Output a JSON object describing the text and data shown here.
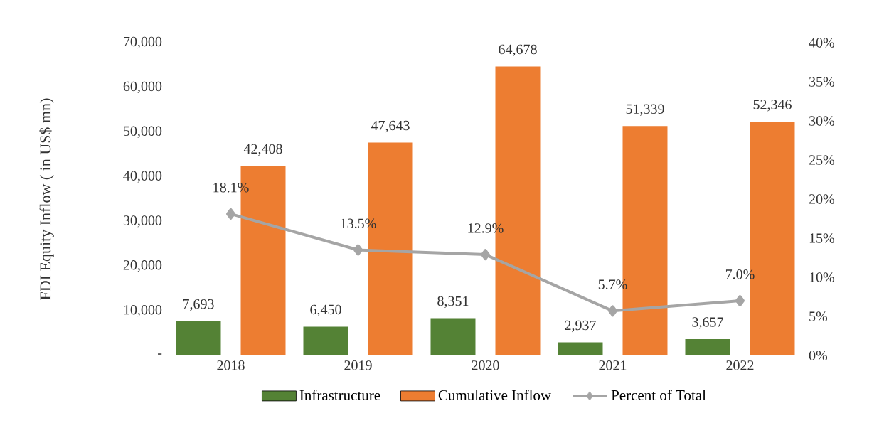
{
  "chart_data": {
    "type": "bar",
    "ylabel": "FDI Equity Inflow ( in US$ mn)",
    "categories": [
      "2018",
      "2019",
      "2020",
      "2021",
      "2022"
    ],
    "series": [
      {
        "name": "Infrastructure",
        "color": "#548235",
        "values": [
          7693,
          6450,
          8351,
          2937,
          3657
        ],
        "value_labels": [
          "7,693",
          "6,450",
          "8,351",
          "2,937",
          "3,657"
        ]
      },
      {
        "name": "Cumulative Inflow",
        "color": "#ed7d31",
        "values": [
          42408,
          47643,
          64678,
          51339,
          52346
        ],
        "value_labels": [
          "42,408",
          "47,643",
          "64,678",
          "51,339",
          "52,346"
        ]
      },
      {
        "name": "Percent of Total",
        "type": "line",
        "axis": "y2",
        "color": "#a5a5a5",
        "values": [
          18.1,
          13.5,
          12.9,
          5.7,
          7.0
        ],
        "value_labels": [
          "18.1%",
          "13.5%",
          "12.9%",
          "5.7%",
          "7.0%"
        ]
      }
    ],
    "ylim": [
      0,
      70000
    ],
    "yticks": [
      {
        "value": 0,
        "label": "-"
      },
      {
        "value": 10000,
        "label": "10,000"
      },
      {
        "value": 20000,
        "label": "20,000"
      },
      {
        "value": 30000,
        "label": "30,000"
      },
      {
        "value": 40000,
        "label": "40,000"
      },
      {
        "value": 50000,
        "label": "50,000"
      },
      {
        "value": 60000,
        "label": "60,000"
      },
      {
        "value": 70000,
        "label": "70,000"
      }
    ],
    "y2lim": [
      0,
      40
    ],
    "y2ticks": [
      {
        "value": 0,
        "label": "0%"
      },
      {
        "value": 5,
        "label": "5%"
      },
      {
        "value": 10,
        "label": "10%"
      },
      {
        "value": 15,
        "label": "15%"
      },
      {
        "value": 20,
        "label": "20%"
      },
      {
        "value": 25,
        "label": "25%"
      },
      {
        "value": 30,
        "label": "30%"
      },
      {
        "value": 35,
        "label": "35%"
      },
      {
        "value": 40,
        "label": "40%"
      }
    ],
    "marker": "diamond",
    "legend": "bottom",
    "grid": false
  }
}
